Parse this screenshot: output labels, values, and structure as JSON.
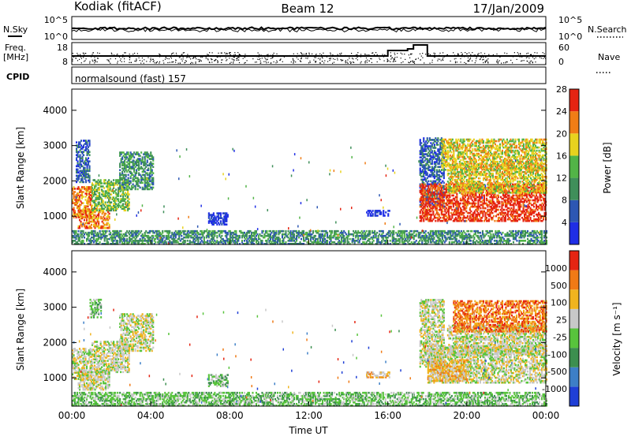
{
  "header": {
    "site": "Kodiak (fitACF)",
    "beam": "Beam 12",
    "date": "17/Jan/2009"
  },
  "top_panels": {
    "nsky_label": "N.Sky",
    "nsearch_label": "N.Search",
    "freq_label_line1": "Freq.",
    "freq_label_line2": "[MHz]",
    "nave_label": "Nave",
    "cpid_label": "CPID",
    "cpid_text": "normalsound (fast) 157",
    "n_ticks_left": [
      "10^5",
      "10^0"
    ],
    "n_ticks_right": [
      "10^5",
      "10^0"
    ],
    "freq_ticks": [
      "18",
      "8"
    ],
    "nave_ticks": [
      "60",
      "0"
    ]
  },
  "chart_data": [
    {
      "type": "heatmap",
      "name": "power",
      "ylabel": "Slant Range [km]",
      "yticks": [
        "1000",
        "2000",
        "3000",
        "4000"
      ],
      "ylim": [
        200,
        4600
      ],
      "xlim_hours": [
        0,
        24
      ],
      "colorbar": {
        "label": "Power [dB]",
        "ticks": [
          "4",
          "8",
          "12",
          "16",
          "20",
          "24",
          "28"
        ],
        "colors": [
          "#1f2ee6",
          "#2d57b3",
          "#3f8f5a",
          "#52b447",
          "#e8d21e",
          "#f07d16",
          "#e52412"
        ]
      },
      "regions": [
        {
          "t0": 0.0,
          "t1": 1.0,
          "r0": 950,
          "r1": 1850,
          "level": 5
        },
        {
          "t0": 0.3,
          "t1": 1.9,
          "r0": 650,
          "r1": 1200,
          "level": 5
        },
        {
          "t0": 1.0,
          "t1": 2.9,
          "r0": 1150,
          "r1": 2050,
          "level": 3
        },
        {
          "t0": 2.4,
          "t1": 4.1,
          "r0": 1750,
          "r1": 2800,
          "level": 2
        },
        {
          "t0": 0.2,
          "t1": 0.9,
          "r0": 1950,
          "r1": 3150,
          "level": 1
        },
        {
          "t0": 6.9,
          "t1": 7.9,
          "r0": 750,
          "r1": 1100,
          "level": 0
        },
        {
          "t0": 14.9,
          "t1": 16.1,
          "r0": 1000,
          "r1": 1150,
          "level": 0
        },
        {
          "t0": 17.6,
          "t1": 18.8,
          "r0": 1300,
          "r1": 3200,
          "level": 1
        },
        {
          "t0": 17.6,
          "t1": 24.0,
          "r0": 850,
          "r1": 1900,
          "level": 6
        },
        {
          "t0": 19.0,
          "t1": 24.0,
          "r0": 1650,
          "r1": 2500,
          "level": 4
        },
        {
          "t0": 18.7,
          "t1": 24.0,
          "r0": 2300,
          "r1": 3200,
          "level": 4
        },
        {
          "t0": 0.0,
          "t1": 24.0,
          "r0": 200,
          "r1": 600,
          "level": 2
        }
      ]
    },
    {
      "type": "heatmap",
      "name": "velocity",
      "ylabel": "Slant Range [km]",
      "yticks": [
        "1000",
        "2000",
        "3000",
        "4000"
      ],
      "ylim": [
        200,
        4600
      ],
      "xlim_hours": [
        0,
        24
      ],
      "xticks": [
        "00:00",
        "04:00",
        "08:00",
        "12:00",
        "16:00",
        "20:00",
        "00:00"
      ],
      "xlabel": "Time UT",
      "colorbar": {
        "label": "Velocity [m s⁻¹]",
        "ticks": [
          "1000",
          "500",
          "100",
          "25",
          "-25",
          "-100",
          "-500",
          "-1000"
        ],
        "colors": [
          "#1f3fd6",
          "#3d7fc7",
          "#3c8f4f",
          "#58c43c",
          "#c8c8c8",
          "#f0b41e",
          "#f07a16",
          "#e52412"
        ]
      },
      "regions": [
        {
          "t0": 0.0,
          "t1": 1.0,
          "r0": 950,
          "r1": 1850,
          "level": 4
        },
        {
          "t0": 0.3,
          "t1": 1.9,
          "r0": 650,
          "r1": 1200,
          "level": 4
        },
        {
          "t0": 1.0,
          "t1": 2.9,
          "r0": 1150,
          "r1": 2050,
          "level": 4
        },
        {
          "t0": 2.4,
          "t1": 4.1,
          "r0": 1750,
          "r1": 2800,
          "level": 4
        },
        {
          "t0": 0.9,
          "t1": 1.5,
          "r0": 2700,
          "r1": 3200,
          "level": 3
        },
        {
          "t0": 6.9,
          "t1": 7.9,
          "r0": 750,
          "r1": 1100,
          "level": 3
        },
        {
          "t0": 14.9,
          "t1": 16.1,
          "r0": 1000,
          "r1": 1150,
          "level": 5
        },
        {
          "t0": 17.6,
          "t1": 18.8,
          "r0": 1300,
          "r1": 3200,
          "level": 4
        },
        {
          "t0": 18.0,
          "t1": 24.0,
          "r0": 850,
          "r1": 1900,
          "level": 4
        },
        {
          "t0": 18.0,
          "t1": 20.0,
          "r0": 900,
          "r1": 1500,
          "level": 5
        },
        {
          "t0": 19.0,
          "t1": 24.0,
          "r0": 1650,
          "r1": 2500,
          "level": 4
        },
        {
          "t0": 19.3,
          "t1": 24.0,
          "r0": 2300,
          "r1": 3200,
          "level": 6
        },
        {
          "t0": 0.0,
          "t1": 24.0,
          "r0": 200,
          "r1": 600,
          "level": 3
        }
      ]
    }
  ]
}
